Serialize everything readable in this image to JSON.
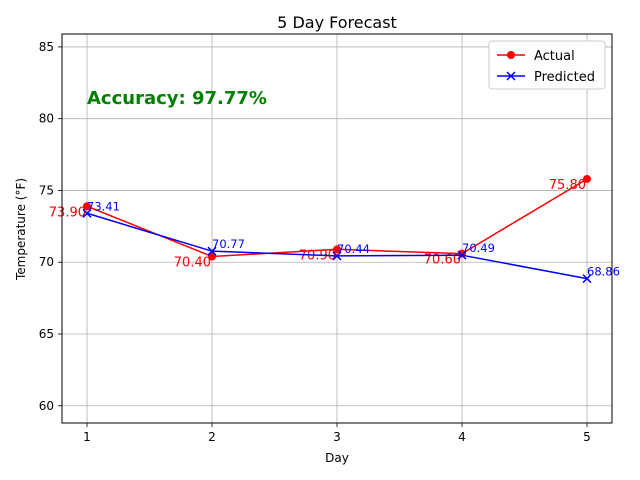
{
  "chart_data": {
    "type": "line",
    "title": "5 Day Forecast",
    "xlabel": "Day",
    "ylabel": "Temperature (°F)",
    "x": [
      1,
      2,
      3,
      4,
      5
    ],
    "xlim": [
      0.8,
      5.2
    ],
    "ylim": [
      58.8,
      85.9
    ],
    "xticks": [
      1,
      2,
      3,
      4,
      5
    ],
    "yticks": [
      60,
      65,
      70,
      75,
      80,
      85
    ],
    "grid": true,
    "legend_position": "top-right",
    "series": [
      {
        "name": "Actual",
        "color": "#ff0000",
        "marker": "circle",
        "values": [
          73.9,
          70.4,
          70.9,
          70.6,
          75.8
        ],
        "labels": [
          "73.90",
          "70.40",
          "70.90",
          "70.60",
          "75.80"
        ]
      },
      {
        "name": "Predicted",
        "color": "#0000ff",
        "marker": "x",
        "values": [
          73.41,
          70.77,
          70.44,
          70.49,
          68.86
        ],
        "labels": [
          "73.41",
          "70.77",
          "70.44",
          "70.49",
          "68.86"
        ]
      }
    ],
    "annotation": {
      "text": "Accuracy: 97.77%",
      "color": "#008000"
    }
  }
}
